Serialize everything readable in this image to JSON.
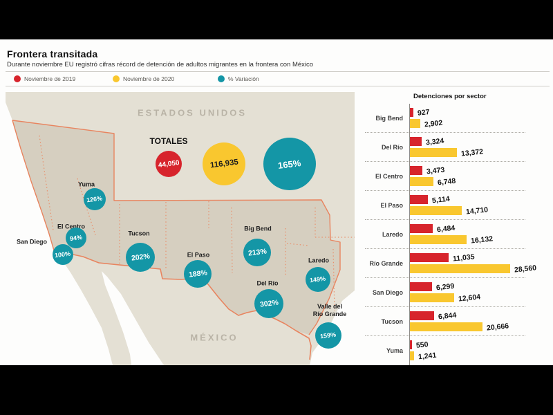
{
  "header": {
    "title": "Frontera transitada",
    "subtitle": "Durante noviembre EU registró cifras récord de detención de adultos migrantes en la frontera con México"
  },
  "legend": {
    "items": [
      {
        "label": "Noviembre de 2019",
        "color": "#d7242c"
      },
      {
        "label": "Noviembre de 2020",
        "color": "#f9c72f"
      },
      {
        "label": "% Variación",
        "color": "#1496a6"
      }
    ]
  },
  "map": {
    "us_label": "ESTADOS UNIDOS",
    "mx_label": "MÉXICO",
    "totals": {
      "label": "TOTALES",
      "nov2019": "44,050",
      "nov2020": "116,935",
      "variation": "165%"
    },
    "sectors": [
      {
        "name": "Yuma",
        "pct": "126%"
      },
      {
        "name": "El Centro",
        "pct": "94%"
      },
      {
        "name": "San Diego",
        "pct": "100%"
      },
      {
        "name": "Tucson",
        "pct": "202%"
      },
      {
        "name": "El Paso",
        "pct": "188%"
      },
      {
        "name": "Big Bend",
        "pct": "213%"
      },
      {
        "name": "Del Río",
        "pct": "302%"
      },
      {
        "name": "Laredo",
        "pct": "149%"
      },
      {
        "name": "Valle del",
        "name2": "Río Grande",
        "pct": "159%"
      }
    ],
    "colors": {
      "land_light": "#e4e0d4",
      "land_dark": "#d6cfc0",
      "border_line": "#e8845f"
    }
  },
  "chart": {
    "title": "Detenciones por sector",
    "rows": [
      {
        "label": "Big Bend",
        "v2019": "927",
        "v2020": "2,902"
      },
      {
        "label": "Del Río",
        "v2019": "3,324",
        "v2020": "13,372"
      },
      {
        "label": "El Centro",
        "v2019": "3,473",
        "v2020": "6,748"
      },
      {
        "label": "El Paso",
        "v2019": "5,114",
        "v2020": "14,710"
      },
      {
        "label": "Laredo",
        "v2019": "6,484",
        "v2020": "16,132"
      },
      {
        "label": "Río Grande",
        "v2019": "11,035",
        "v2020": "28,560"
      },
      {
        "label": "San Diego",
        "v2019": "6,299",
        "v2020": "12,604"
      },
      {
        "label": "Tucson",
        "v2019": "6,844",
        "v2020": "20,666"
      },
      {
        "label": "Yuma",
        "v2019": "550",
        "v2020": "1,241"
      }
    ]
  },
  "chart_data": {
    "type": "bar",
    "orientation": "horizontal",
    "title": "Detenciones por sector",
    "categories": [
      "Big Bend",
      "Del Río",
      "El Centro",
      "El Paso",
      "Laredo",
      "Río Grande",
      "San Diego",
      "Tucson",
      "Yuma"
    ],
    "series": [
      {
        "name": "Noviembre de 2019",
        "color": "#d7242c",
        "values": [
          927,
          3324,
          3473,
          5114,
          6484,
          11035,
          6299,
          6844,
          550
        ]
      },
      {
        "name": "Noviembre de 2020",
        "color": "#f9c72f",
        "values": [
          2902,
          13372,
          6748,
          14710,
          16132,
          28560,
          12604,
          20666,
          1241
        ]
      }
    ],
    "variation_pct_by_category": [
      "213%",
      "302%",
      "94%",
      "188%",
      "149%",
      "159%",
      "100%",
      "202%",
      "126%"
    ],
    "totals": {
      "nov2019": 44050,
      "nov2020": 116935,
      "variation_pct": "165%"
    },
    "xlim": [
      0,
      28560
    ],
    "grid": false,
    "value_labels": true,
    "legend_position": "top"
  }
}
